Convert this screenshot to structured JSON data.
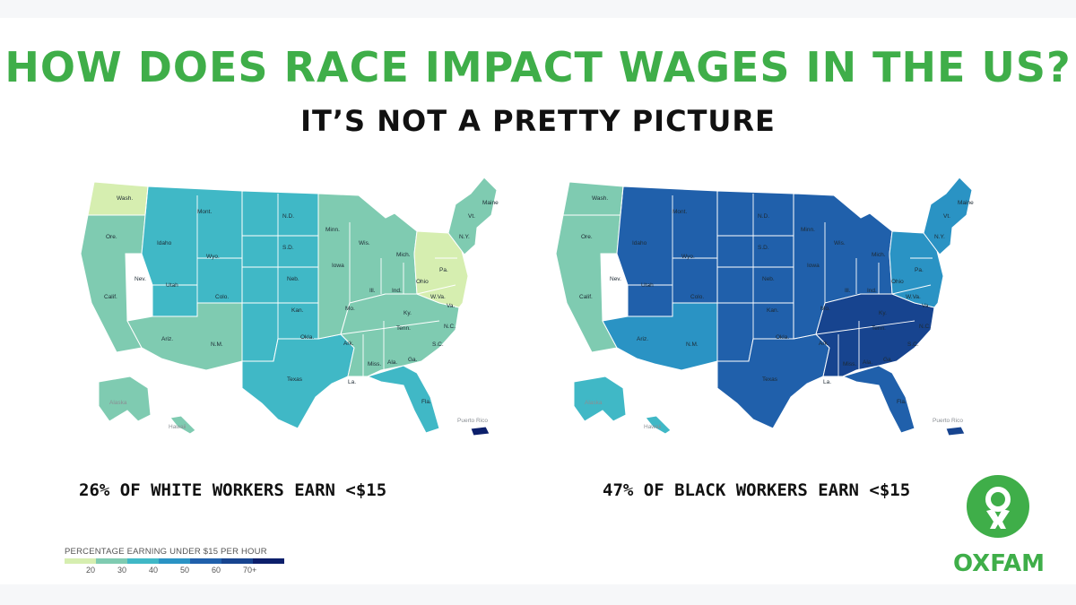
{
  "title": "HOW DOES RACE IMPACT WAGES IN THE US?",
  "subtitle": "IT’S NOT A PRETTY PICTURE",
  "colors": {
    "brand_green": "#3fae49",
    "scale": [
      "#d6eeb0",
      "#7fcbb1",
      "#40b8c6",
      "#2a93c4",
      "#2060ab",
      "#17448f",
      "#0c1f6b"
    ]
  },
  "maps": [
    {
      "caption": "26% OF WHITE WORKERS EARN <$15",
      "value_percent": 26,
      "fill_by_region": {
        "west_coast": 1,
        "west_coast_north": 0,
        "mountain": 2,
        "southwest": 1,
        "plains": 2,
        "midwest": 1,
        "south": 2,
        "southeast": 1,
        "florida": 2,
        "northeast": 1,
        "mid_atlantic": 0,
        "alaska": 1,
        "hawaii": 1,
        "puerto_rico": 6
      }
    },
    {
      "caption": "47% OF BLACK WORKERS EARN <$15",
      "value_percent": 47,
      "fill_by_region": {
        "west_coast": 1,
        "west_coast_north": 1,
        "mountain": 4,
        "southwest": 3,
        "plains": 4,
        "midwest": 4,
        "south": 4,
        "southeast": 5,
        "florida": 4,
        "northeast": 3,
        "mid_atlantic": 3,
        "alaska": 2,
        "hawaii": 2,
        "puerto_rico": 5
      }
    }
  ],
  "state_labels": [
    "Wash.",
    "Ore.",
    "Calif.",
    "Nev.",
    "Idaho",
    "Mont.",
    "Wyo.",
    "Utah",
    "Colo.",
    "Ariz.",
    "N.M.",
    "N.D.",
    "S.D.",
    "Neb.",
    "Kan.",
    "Okla.",
    "Texas",
    "Minn.",
    "Iowa",
    "Mo.",
    "Ark.",
    "La.",
    "Wis.",
    "Ill.",
    "Mich.",
    "Ind.",
    "Ohio",
    "Ky.",
    "Tenn.",
    "Miss.",
    "Ala.",
    "Ga.",
    "Fla.",
    "S.C.",
    "N.C.",
    "Va.",
    "W.Va.",
    "Pa.",
    "N.Y.",
    "Maine",
    "Vt.",
    "Alaska",
    "Hawaii",
    "Puerto Rico"
  ],
  "legend": {
    "title": "PERCENTAGE EARNING UNDER $15 PER HOUR",
    "ticks": [
      "20",
      "30",
      "40",
      "50",
      "60",
      "70+"
    ]
  },
  "logo": {
    "text": "OXFAM"
  }
}
